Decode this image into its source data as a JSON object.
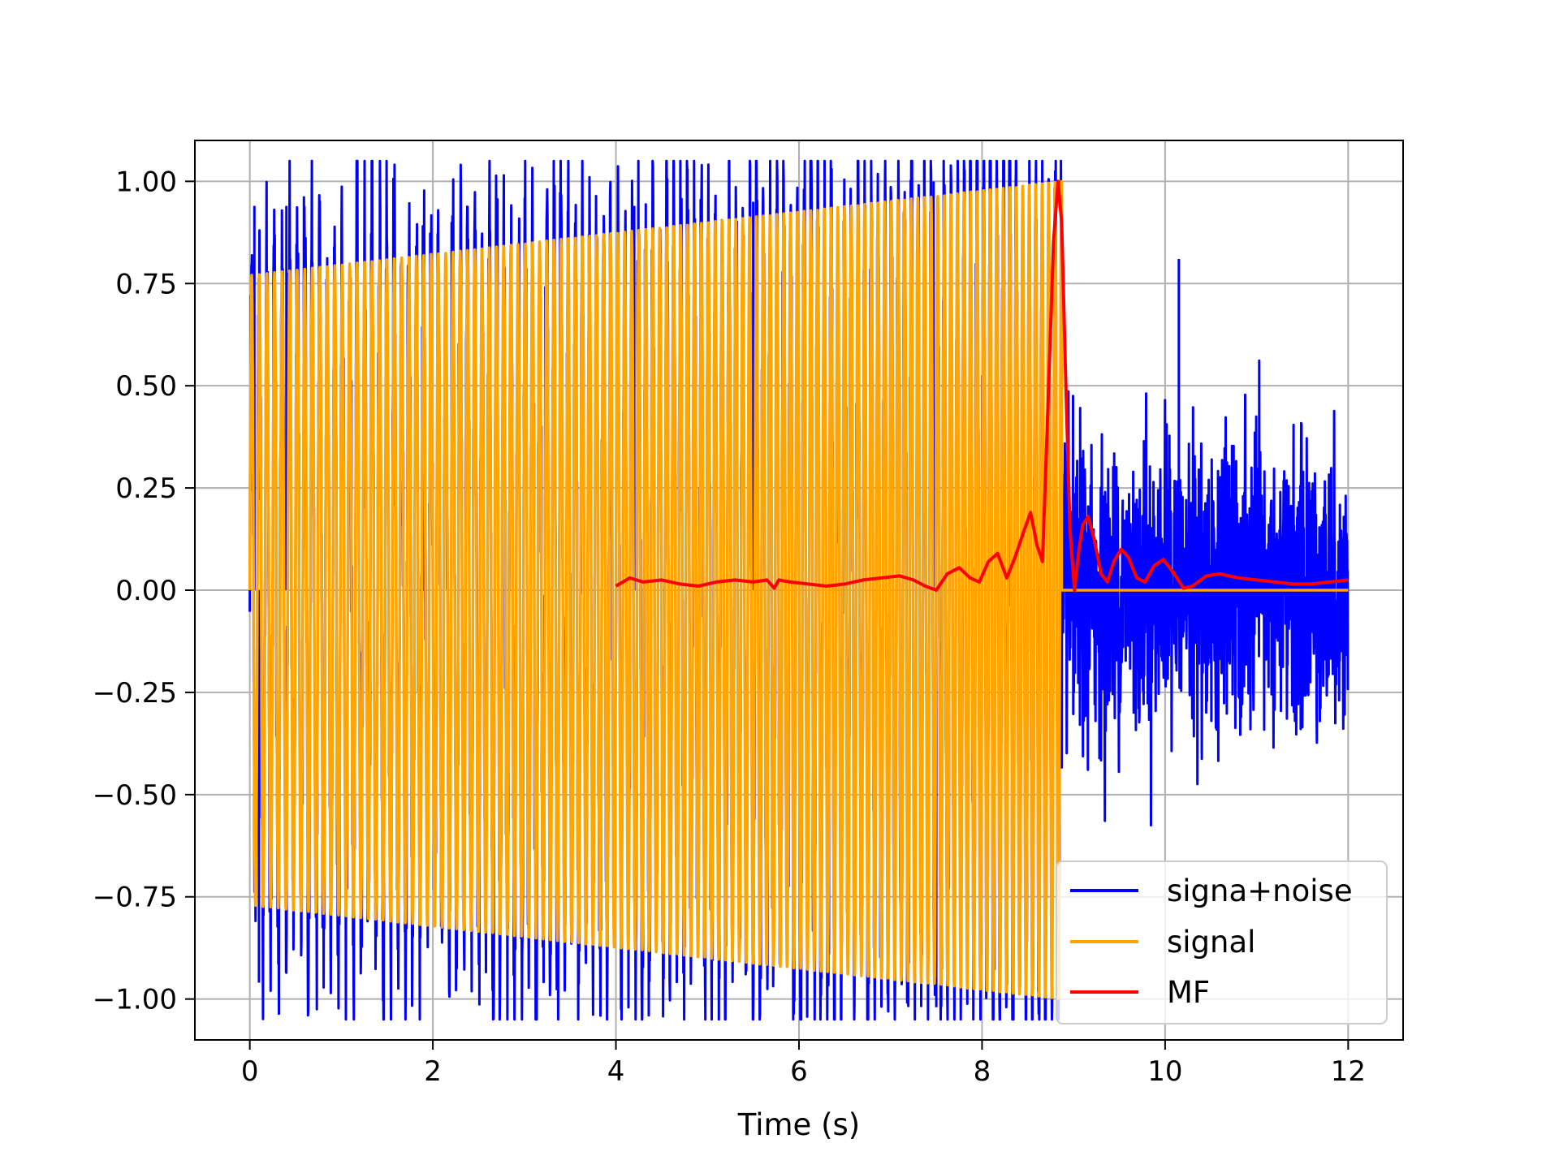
{
  "chart_data": {
    "type": "line",
    "title": "",
    "xlabel": "Time (s)",
    "ylabel": "",
    "xlim": [
      -0.6,
      12.6
    ],
    "ylim": [
      -1.1,
      1.1
    ],
    "xticks": [
      0,
      2,
      4,
      6,
      8,
      10,
      12
    ],
    "xtick_labels": [
      "0",
      "2",
      "4",
      "6",
      "8",
      "10",
      "12"
    ],
    "yticks": [
      1.0,
      0.75,
      0.5,
      0.25,
      0.0,
      -0.25,
      -0.5,
      -0.75,
      -1.0
    ],
    "ytick_labels": [
      "1.00",
      "0.75",
      "0.50",
      "0.25",
      "0.00",
      "−0.25",
      "−0.50",
      "−0.75",
      "−1.00"
    ],
    "grid": true,
    "legend_position": "lower-right",
    "series": [
      {
        "name": "signa+noise",
        "color": "#0000ff",
        "description_values": {
          "x_range": [
            0,
            12
          ],
          "signal_region_envelope": {
            "x": [
              0,
              8.87
            ],
            "amplitude": [
              0.77,
              1.0
            ]
          },
          "noise_only_region": {
            "x": [
              8.87,
              12
            ],
            "peaks": [
              0.81,
              -0.76
            ]
          },
          "notable_spikes": [
            [
              0.05,
              0.94
            ],
            [
              0.1,
              -0.96
            ],
            [
              0.4,
              0.94
            ],
            [
              4.2,
              0.94
            ],
            [
              5.5,
              0.95
            ],
            [
              7.47,
              1.0
            ],
            [
              7.5,
              -1.02
            ],
            [
              10.15,
              0.81
            ]
          ]
        }
      },
      {
        "name": "signal",
        "color": "#ffa500",
        "description_values": {
          "x_range": [
            0,
            8.87
          ],
          "envelope_start": 0.77,
          "envelope_end": 1.0,
          "after_end_value": 0.0,
          "after_end_range": [
            8.87,
            12
          ]
        }
      },
      {
        "name": "MF",
        "color": "#ff0000",
        "x": [
          4.0,
          4.15,
          4.3,
          4.5,
          4.7,
          4.9,
          5.1,
          5.3,
          5.5,
          5.65,
          5.73,
          5.78,
          5.9,
          6.1,
          6.3,
          6.5,
          6.7,
          6.9,
          7.1,
          7.25,
          7.38,
          7.5,
          7.62,
          7.75,
          7.87,
          7.97,
          8.07,
          8.17,
          8.27,
          8.36,
          8.45,
          8.53,
          8.6,
          8.66,
          8.72,
          8.78,
          8.83,
          8.87,
          8.91,
          8.96,
          9.01,
          9.06,
          9.1,
          9.16,
          9.23,
          9.3,
          9.37,
          9.44,
          9.52,
          9.6,
          9.69,
          9.78,
          9.88,
          9.98,
          10.1,
          10.2,
          10.3,
          10.45,
          10.6,
          10.8,
          11.0,
          11.2,
          11.4,
          11.6,
          11.8,
          12.0
        ],
        "y": [
          0.01,
          0.03,
          0.02,
          0.025,
          0.015,
          0.01,
          0.02,
          0.025,
          0.02,
          0.025,
          0.005,
          0.025,
          0.02,
          0.015,
          0.01,
          0.015,
          0.025,
          0.03,
          0.035,
          0.025,
          0.01,
          0.0,
          0.04,
          0.055,
          0.03,
          0.02,
          0.07,
          0.09,
          0.03,
          0.08,
          0.14,
          0.19,
          0.11,
          0.07,
          0.45,
          0.85,
          1.0,
          0.9,
          0.55,
          0.15,
          0.0,
          0.1,
          0.16,
          0.18,
          0.12,
          0.04,
          0.02,
          0.07,
          0.1,
          0.08,
          0.03,
          0.02,
          0.06,
          0.075,
          0.04,
          0.005,
          0.01,
          0.035,
          0.04,
          0.03,
          0.025,
          0.02,
          0.015,
          0.015,
          0.02,
          0.025
        ]
      }
    ]
  }
}
